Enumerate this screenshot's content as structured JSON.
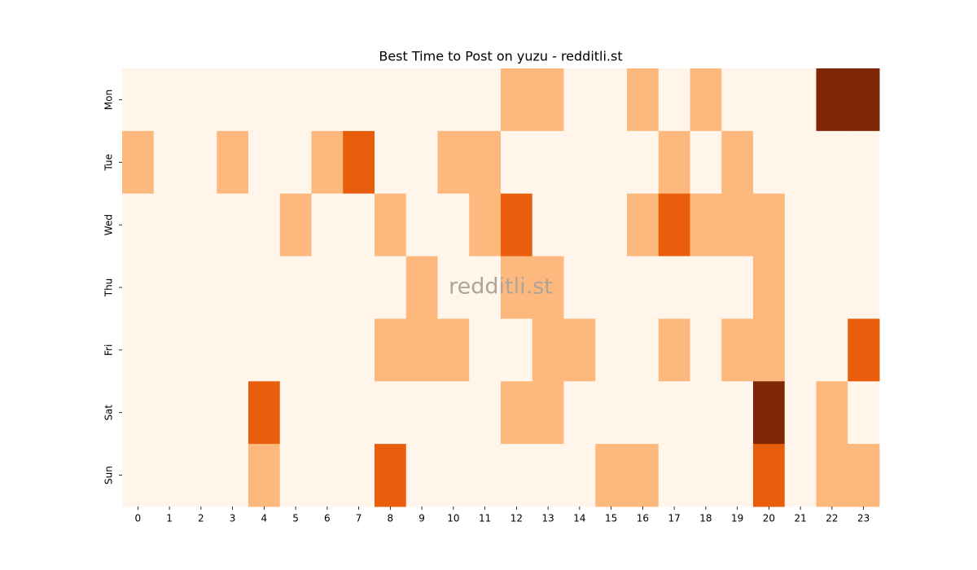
{
  "chart_data": {
    "type": "heatmap",
    "title": "Best Time to Post on yuzu - redditli.st",
    "watermark": "redditli.st",
    "rows": [
      "Mon",
      "Tue",
      "Wed",
      "Thu",
      "Fri",
      "Sat",
      "Sun"
    ],
    "columns": [
      0,
      1,
      2,
      3,
      4,
      5,
      6,
      7,
      8,
      9,
      10,
      11,
      12,
      13,
      14,
      15,
      16,
      17,
      18,
      19,
      20,
      21,
      22,
      23
    ],
    "colors": [
      "#fff5eb",
      "#fdb97d",
      "#e95e0d",
      "#7f2704"
    ],
    "values": [
      [
        0,
        0,
        0,
        0,
        0,
        0,
        0,
        0,
        0,
        0,
        0,
        0,
        1,
        1,
        0,
        0,
        1,
        0,
        1,
        0,
        0,
        0,
        3,
        3
      ],
      [
        1,
        0,
        0,
        1,
        0,
        0,
        1,
        2,
        0,
        0,
        1,
        1,
        0,
        0,
        0,
        0,
        0,
        1,
        0,
        1,
        0,
        0,
        0,
        0
      ],
      [
        0,
        0,
        0,
        0,
        0,
        1,
        0,
        0,
        1,
        0,
        0,
        1,
        2,
        0,
        0,
        0,
        1,
        2,
        1,
        1,
        1,
        0,
        0,
        0
      ],
      [
        0,
        0,
        0,
        0,
        0,
        0,
        0,
        0,
        0,
        1,
        0,
        0,
        1,
        1,
        0,
        0,
        0,
        0,
        0,
        0,
        1,
        0,
        0,
        0
      ],
      [
        0,
        0,
        0,
        0,
        0,
        0,
        0,
        0,
        1,
        1,
        1,
        0,
        0,
        1,
        1,
        0,
        0,
        1,
        0,
        1,
        1,
        0,
        0,
        2
      ],
      [
        0,
        0,
        0,
        0,
        2,
        0,
        0,
        0,
        0,
        0,
        0,
        0,
        1,
        1,
        0,
        0,
        0,
        0,
        0,
        0,
        3,
        0,
        1,
        0
      ],
      [
        0,
        0,
        0,
        0,
        1,
        0,
        0,
        0,
        2,
        0,
        0,
        0,
        0,
        0,
        0,
        1,
        1,
        0,
        0,
        0,
        2,
        0,
        1,
        1
      ]
    ]
  }
}
